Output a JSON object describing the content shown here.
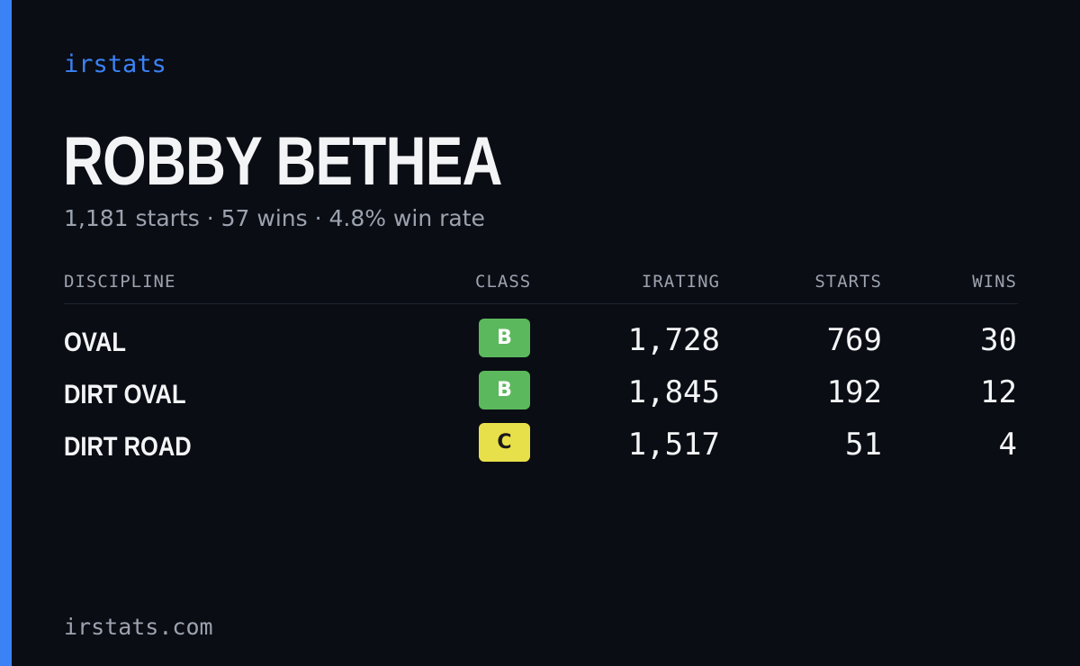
{
  "brand": "irstats",
  "name": "ROBBY BETHEA",
  "summary": "1,181 starts · 57 wins · 4.8% win rate",
  "table": {
    "headers": [
      "DISCIPLINE",
      "CLASS",
      "IRATING",
      "STARTS",
      "WINS"
    ],
    "rows": [
      [
        "OVAL",
        "B",
        "1,728",
        "769",
        "30"
      ],
      [
        "DIRT OVAL",
        "B",
        "1,845",
        "192",
        "12"
      ],
      [
        "DIRT ROAD",
        "C",
        "1,517",
        "51",
        "4"
      ]
    ]
  },
  "footer": "irstats.com"
}
